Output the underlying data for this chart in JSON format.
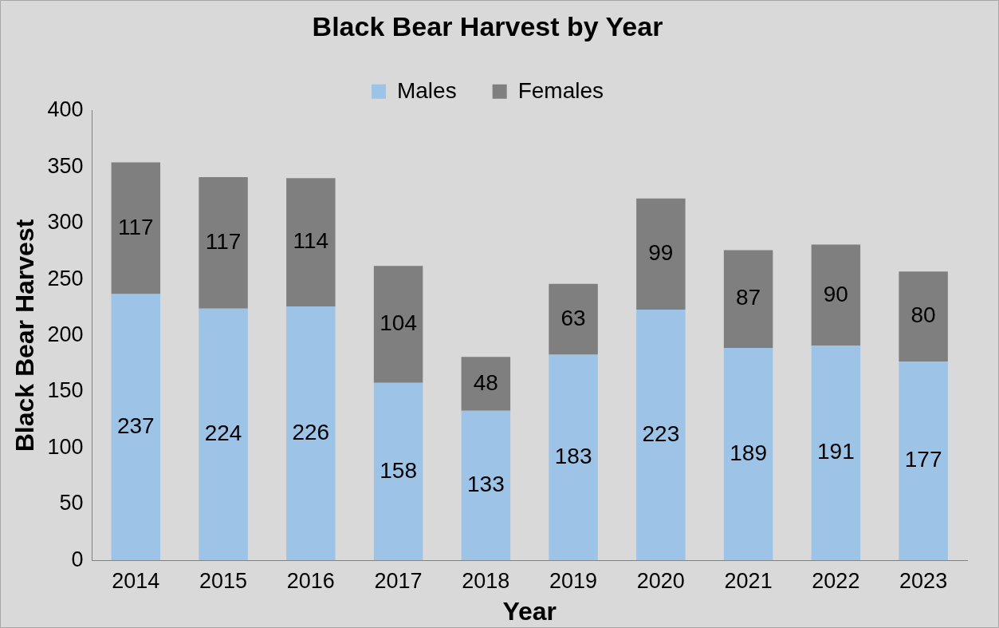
{
  "chart_data": {
    "type": "bar",
    "title": "Black Bear Harvest by Year",
    "xlabel": "Year",
    "ylabel": "Black Bear Harvest",
    "categories": [
      "2014",
      "2015",
      "2016",
      "2017",
      "2018",
      "2019",
      "2020",
      "2021",
      "2022",
      "2023"
    ],
    "stacked": true,
    "data_labels": true,
    "grid": false,
    "legend": "top",
    "series": [
      {
        "name": "Males",
        "color": "#9dc3e6",
        "values": [
          237,
          224,
          226,
          158,
          133,
          183,
          223,
          189,
          191,
          177
        ]
      },
      {
        "name": "Females",
        "color": "#7f7f7f",
        "values": [
          117,
          117,
          114,
          104,
          48,
          63,
          99,
          87,
          90,
          80
        ]
      }
    ],
    "ylim": [
      0,
      400
    ],
    "yticks": [
      0,
      50,
      100,
      150,
      200,
      250,
      300,
      350,
      400
    ]
  }
}
